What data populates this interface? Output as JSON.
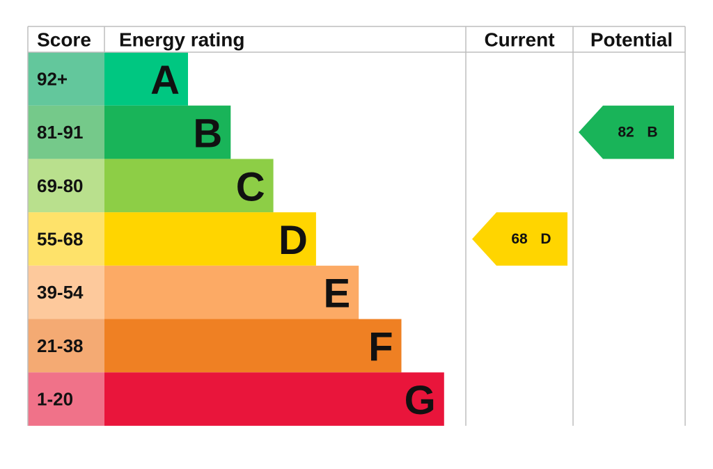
{
  "header": {
    "score": "Score",
    "rating": "Energy rating",
    "current": "Current",
    "potential": "Potential"
  },
  "bands": [
    {
      "range": "92+",
      "letter": "A",
      "color": "#00c781",
      "score_color": "#63c79c"
    },
    {
      "range": "81-91",
      "letter": "B",
      "color": "#19b459",
      "score_color": "#75c98a"
    },
    {
      "range": "69-80",
      "letter": "C",
      "color": "#8dce46",
      "score_color": "#b9e08d"
    },
    {
      "range": "55-68",
      "letter": "D",
      "color": "#ffd500",
      "score_color": "#fee26a"
    },
    {
      "range": "39-54",
      "letter": "E",
      "color": "#fcaa65",
      "score_color": "#fdc99c"
    },
    {
      "range": "21-38",
      "letter": "F",
      "color": "#ef8023",
      "score_color": "#f4aa73"
    },
    {
      "range": "1-20",
      "letter": "G",
      "color": "#e9153b",
      "score_color": "#f07289"
    }
  ],
  "current": {
    "value": 68,
    "letter": "D",
    "color": "#ffd500"
  },
  "potential": {
    "value": 82,
    "letter": "B",
    "color": "#19b459"
  }
}
